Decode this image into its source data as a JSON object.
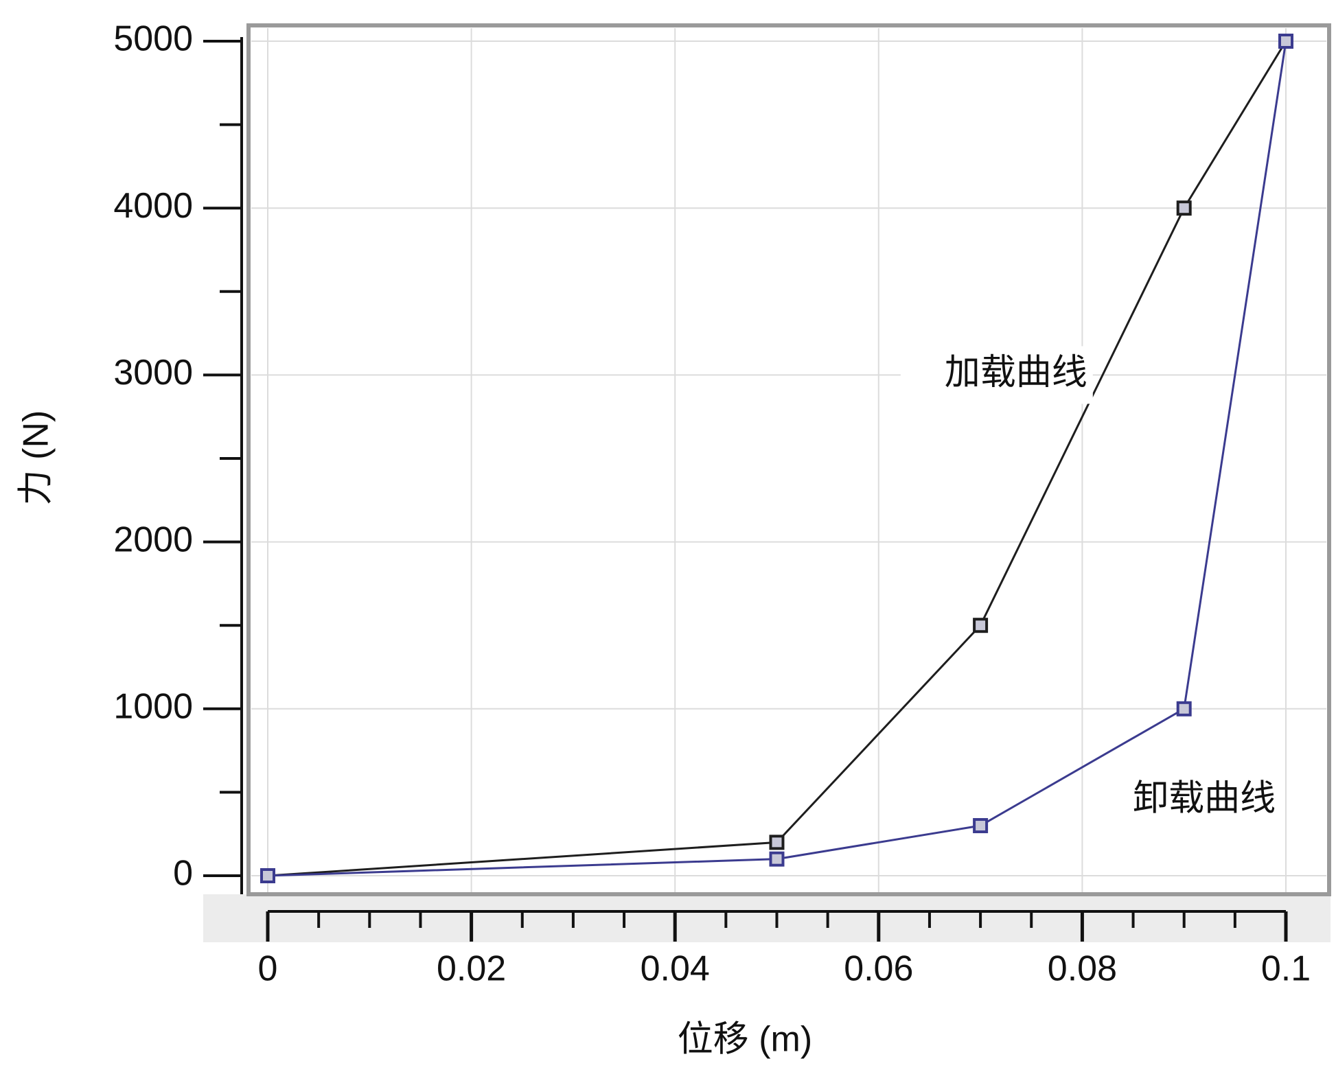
{
  "chart_data": {
    "type": "line",
    "xlabel": "位移 (m)",
    "ylabel": "力 (N)",
    "xlim": [
      0,
      0.1
    ],
    "ylim": [
      0,
      5000
    ],
    "xticks": [
      0,
      0.02,
      0.04,
      0.06,
      0.08,
      0.1
    ],
    "yticks": [
      0,
      1000,
      2000,
      3000,
      4000,
      5000
    ],
    "xminorticks": [
      0.005,
      0.01,
      0.015,
      0.025,
      0.03,
      0.035,
      0.045,
      0.05,
      0.055,
      0.065,
      0.07,
      0.075,
      0.085,
      0.09,
      0.095
    ],
    "yminorticks": [
      500,
      1500,
      2500,
      3500,
      4500
    ],
    "grid": true,
    "series": [
      {
        "x": [
          0,
          0.05,
          0.07,
          0.09,
          0.1
        ],
        "values": [
          0,
          200,
          1500,
          4000,
          5000
        ],
        "color": "#1e1e1e"
      },
      {
        "x": [
          0,
          0.05,
          0.07,
          0.09,
          0.1
        ],
        "values": [
          0,
          100,
          300,
          1000,
          5000
        ],
        "color": "#3b3b8f"
      }
    ],
    "annotations": [
      {
        "text": "加载曲线",
        "x": 0.0805,
        "y": 3000
      },
      {
        "text": "卸载曲线",
        "x": 0.099,
        "y": 450
      }
    ]
  }
}
